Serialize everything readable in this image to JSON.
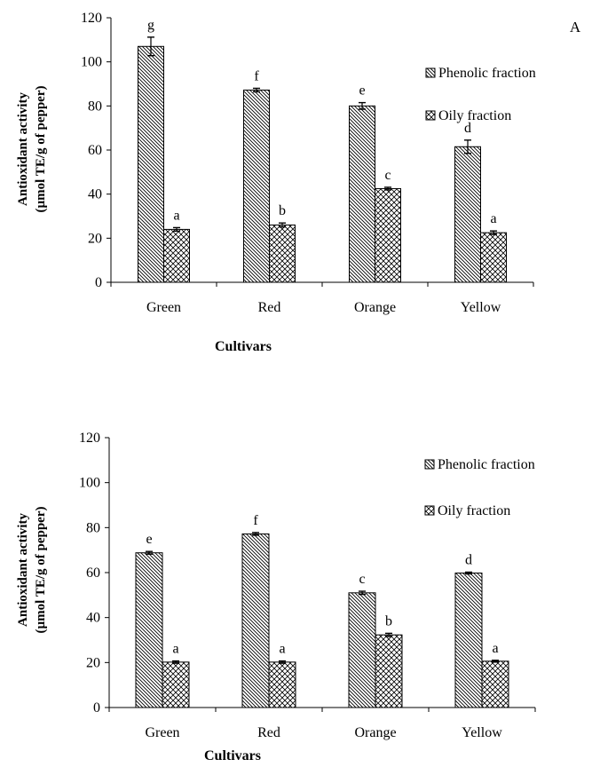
{
  "chart_data": [
    {
      "type": "bar",
      "panel_label": "A",
      "categories": [
        "Green",
        "Red",
        "Orange",
        "Yellow"
      ],
      "series": [
        {
          "name": "Phenolic fraction",
          "values": [
            107,
            87.2,
            80,
            61.5
          ],
          "errors": [
            4.2,
            0.8,
            1.5,
            3.0
          ],
          "labels": [
            "g",
            "f",
            "e",
            "d"
          ],
          "pattern": "diagonal"
        },
        {
          "name": "Oily fraction",
          "values": [
            24,
            26,
            42.5,
            22.5
          ],
          "errors": [
            0.8,
            0.9,
            0.6,
            0.8
          ],
          "labels": [
            "a",
            "b",
            "c",
            "a"
          ],
          "pattern": "crosshatch"
        }
      ],
      "ylabel_lines": [
        "Antioxidant activity",
        "(µmol TE/g of pepper)"
      ],
      "xlabel": "Cultivars",
      "ylim": [
        0,
        120
      ],
      "yticks": [
        0,
        20,
        40,
        60,
        80,
        100,
        120
      ],
      "legend": "right"
    },
    {
      "type": "bar",
      "panel_label": "",
      "categories": [
        "Green",
        "Red",
        "Orange",
        "Yellow"
      ],
      "series": [
        {
          "name": "Phenolic fraction",
          "values": [
            68.8,
            77.2,
            51,
            59.8
          ],
          "errors": [
            0.6,
            0.6,
            0.7,
            0.4
          ],
          "labels": [
            "e",
            "f",
            "c",
            "d"
          ],
          "pattern": "diagonal"
        },
        {
          "name": "Oily fraction",
          "values": [
            20.2,
            20.2,
            32.3,
            20.6
          ],
          "errors": [
            0.5,
            0.5,
            0.7,
            0.4
          ],
          "labels": [
            "a",
            "a",
            "b",
            "a"
          ],
          "pattern": "crosshatch"
        }
      ],
      "ylabel_lines": [
        "Antioxidant activity",
        "(µmol TE/g of pepper)"
      ],
      "xlabel": "Cultivars",
      "ylim": [
        0,
        120
      ],
      "yticks": [
        0,
        20,
        40,
        60,
        80,
        100,
        120
      ],
      "legend": "right"
    }
  ]
}
